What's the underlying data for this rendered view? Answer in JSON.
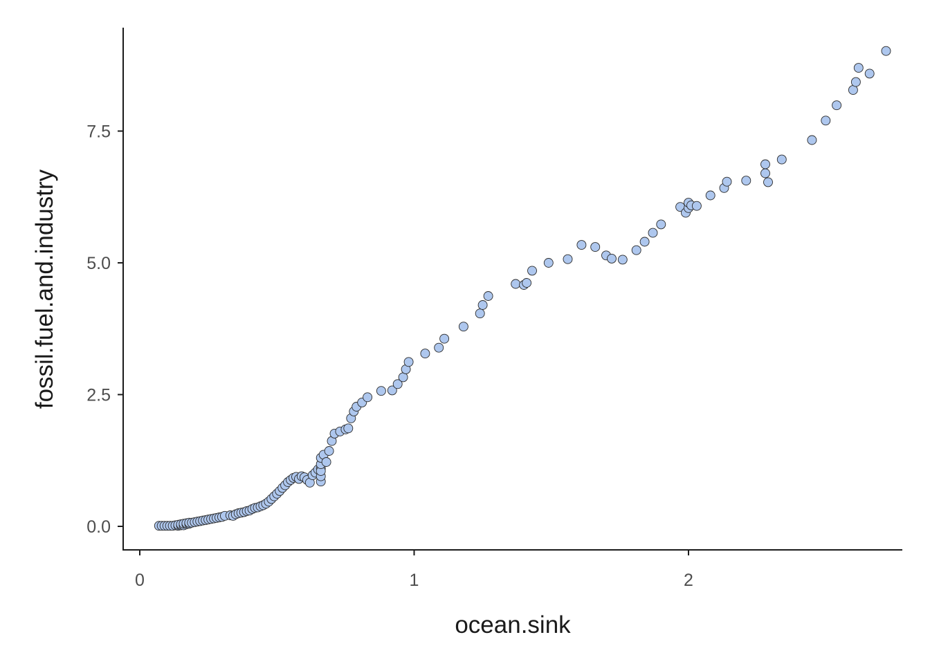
{
  "chart_data": {
    "type": "scatter",
    "title": "",
    "xlabel": "ocean.sink",
    "ylabel": "fossil.fuel.and.industry",
    "xlim": [
      -0.06,
      2.78
    ],
    "ylim": [
      -0.42,
      9.5
    ],
    "x_ticks": [
      0,
      1,
      2
    ],
    "x_tick_labels": [
      "0",
      "1",
      "2"
    ],
    "y_ticks": [
      0,
      2.5,
      5,
      7.5
    ],
    "y_tick_labels": [
      "0.0",
      "2.5",
      "5.0",
      "7.5"
    ],
    "grid": false,
    "legend": "none",
    "point_fill": "#aec7ee",
    "point_stroke": "#2b2b2b",
    "points": [
      [
        0.07,
        0.01
      ],
      [
        0.08,
        0.01
      ],
      [
        0.09,
        0.01
      ],
      [
        0.1,
        0.01
      ],
      [
        0.11,
        0.01
      ],
      [
        0.12,
        0.01
      ],
      [
        0.13,
        0.02
      ],
      [
        0.14,
        0.01
      ],
      [
        0.14,
        0.03
      ],
      [
        0.15,
        0.02
      ],
      [
        0.15,
        0.04
      ],
      [
        0.16,
        0.02
      ],
      [
        0.16,
        0.05
      ],
      [
        0.17,
        0.04
      ],
      [
        0.17,
        0.06
      ],
      [
        0.18,
        0.05
      ],
      [
        0.18,
        0.07
      ],
      [
        0.19,
        0.07
      ],
      [
        0.2,
        0.08
      ],
      [
        0.21,
        0.09
      ],
      [
        0.22,
        0.1
      ],
      [
        0.23,
        0.11
      ],
      [
        0.24,
        0.12
      ],
      [
        0.25,
        0.13
      ],
      [
        0.26,
        0.14
      ],
      [
        0.27,
        0.15
      ],
      [
        0.28,
        0.16
      ],
      [
        0.29,
        0.17
      ],
      [
        0.3,
        0.18
      ],
      [
        0.31,
        0.2
      ],
      [
        0.33,
        0.21
      ],
      [
        0.34,
        0.2
      ],
      [
        0.35,
        0.23
      ],
      [
        0.36,
        0.25
      ],
      [
        0.37,
        0.26
      ],
      [
        0.38,
        0.27
      ],
      [
        0.39,
        0.29
      ],
      [
        0.4,
        0.3
      ],
      [
        0.41,
        0.33
      ],
      [
        0.42,
        0.35
      ],
      [
        0.43,
        0.36
      ],
      [
        0.44,
        0.38
      ],
      [
        0.45,
        0.4
      ],
      [
        0.46,
        0.43
      ],
      [
        0.47,
        0.47
      ],
      [
        0.48,
        0.52
      ],
      [
        0.49,
        0.57
      ],
      [
        0.5,
        0.62
      ],
      [
        0.51,
        0.67
      ],
      [
        0.52,
        0.73
      ],
      [
        0.53,
        0.78
      ],
      [
        0.54,
        0.84
      ],
      [
        0.55,
        0.88
      ],
      [
        0.56,
        0.92
      ],
      [
        0.57,
        0.94
      ],
      [
        0.58,
        0.9
      ],
      [
        0.59,
        0.95
      ],
      [
        0.6,
        0.93
      ],
      [
        0.61,
        0.88
      ],
      [
        0.62,
        0.83
      ],
      [
        0.63,
        0.97
      ],
      [
        0.64,
        1.02
      ],
      [
        0.65,
        1.08
      ],
      [
        0.66,
        1.1
      ],
      [
        0.66,
        0.85
      ],
      [
        0.66,
        0.95
      ],
      [
        0.66,
        1.05
      ],
      [
        0.66,
        1.18
      ],
      [
        0.66,
        1.3
      ],
      [
        0.67,
        1.36
      ],
      [
        0.68,
        1.22
      ],
      [
        0.69,
        1.43
      ],
      [
        0.7,
        1.62
      ],
      [
        0.71,
        1.76
      ],
      [
        0.73,
        1.8
      ],
      [
        0.75,
        1.84
      ],
      [
        0.76,
        1.86
      ],
      [
        0.77,
        2.05
      ],
      [
        0.78,
        2.18
      ],
      [
        0.79,
        2.27
      ],
      [
        0.81,
        2.35
      ],
      [
        0.83,
        2.45
      ],
      [
        0.88,
        2.57
      ],
      [
        0.92,
        2.58
      ],
      [
        0.94,
        2.7
      ],
      [
        0.96,
        2.83
      ],
      [
        0.97,
        2.98
      ],
      [
        0.98,
        3.12
      ],
      [
        1.04,
        3.28
      ],
      [
        1.09,
        3.39
      ],
      [
        1.11,
        3.56
      ],
      [
        1.18,
        3.79
      ],
      [
        1.24,
        4.04
      ],
      [
        1.25,
        4.2
      ],
      [
        1.27,
        4.37
      ],
      [
        1.37,
        4.6
      ],
      [
        1.4,
        4.58
      ],
      [
        1.41,
        4.62
      ],
      [
        1.43,
        4.85
      ],
      [
        1.49,
        5.0
      ],
      [
        1.56,
        5.07
      ],
      [
        1.61,
        5.34
      ],
      [
        1.66,
        5.3
      ],
      [
        1.7,
        5.14
      ],
      [
        1.72,
        5.08
      ],
      [
        1.76,
        5.06
      ],
      [
        1.81,
        5.24
      ],
      [
        1.84,
        5.4
      ],
      [
        1.87,
        5.57
      ],
      [
        1.9,
        5.73
      ],
      [
        1.97,
        6.06
      ],
      [
        1.99,
        5.95
      ],
      [
        2.0,
        6.04
      ],
      [
        2.0,
        6.14
      ],
      [
        2.01,
        6.09
      ],
      [
        2.03,
        6.08
      ],
      [
        2.08,
        6.28
      ],
      [
        2.13,
        6.42
      ],
      [
        2.14,
        6.54
      ],
      [
        2.21,
        6.56
      ],
      [
        2.28,
        6.87
      ],
      [
        2.28,
        6.7
      ],
      [
        2.29,
        6.53
      ],
      [
        2.34,
        6.96
      ],
      [
        2.45,
        7.33
      ],
      [
        2.5,
        7.7
      ],
      [
        2.54,
        7.99
      ],
      [
        2.6,
        8.28
      ],
      [
        2.61,
        8.43
      ],
      [
        2.62,
        8.7
      ],
      [
        2.66,
        8.59
      ],
      [
        2.72,
        9.02
      ]
    ]
  }
}
